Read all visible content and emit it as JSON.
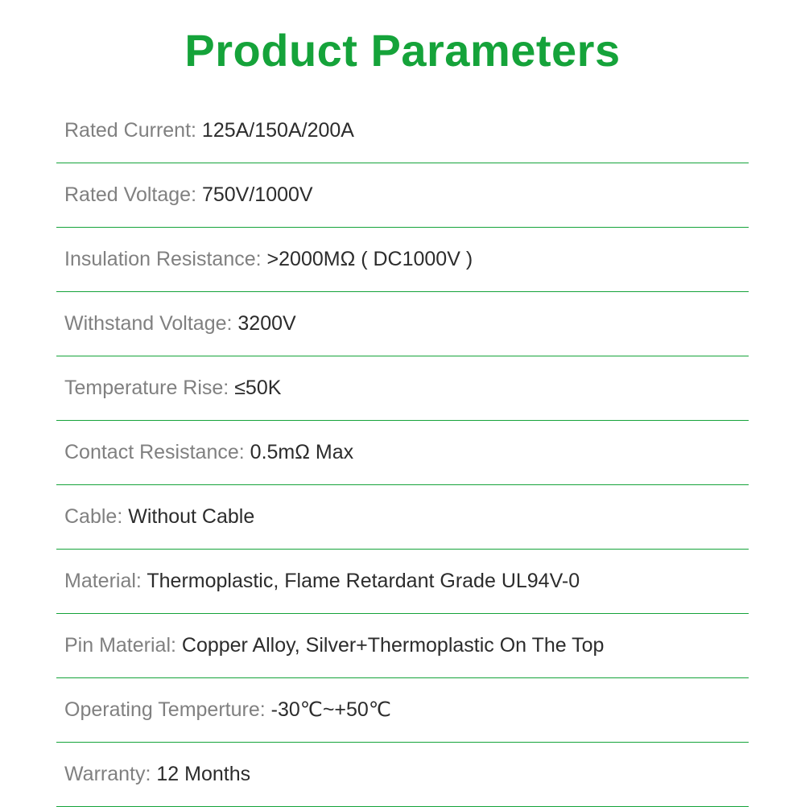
{
  "title": "Product Parameters",
  "colors": {
    "title_color": "#15a33a",
    "label_color": "#808080",
    "value_color": "#2c2c2c",
    "divider_color": "#15a33a",
    "background": "#ffffff"
  },
  "typography": {
    "title_fontsize": 56,
    "title_weight": 700,
    "row_fontsize": 25,
    "row_weight": 400
  },
  "parameters": [
    {
      "label": "Rated Current: ",
      "value": "125A/150A/200A"
    },
    {
      "label": "Rated Voltage: ",
      "value": "750V/1000V"
    },
    {
      "label": "Insulation Resistance: ",
      "value": ">2000MΩ ( DC1000V )"
    },
    {
      "label": "Withstand Voltage: ",
      "value": "3200V"
    },
    {
      "label": "Temperature Rise: ",
      "value": "≤50K"
    },
    {
      "label": "Contact Resistance: ",
      "value": "0.5mΩ Max"
    },
    {
      "label": "Cable: ",
      "value": "Without Cable"
    },
    {
      "label": "Material: ",
      "value": "Thermoplastic, Flame Retardant Grade UL94V-0"
    },
    {
      "label": "Pin Material: ",
      "value": "Copper Alloy, Silver+Thermoplastic On The Top"
    },
    {
      "label": "Operating Temperture: ",
      "value": "-30℃~+50℃"
    },
    {
      "label": "Warranty: ",
      "value": "12 Months"
    }
  ]
}
